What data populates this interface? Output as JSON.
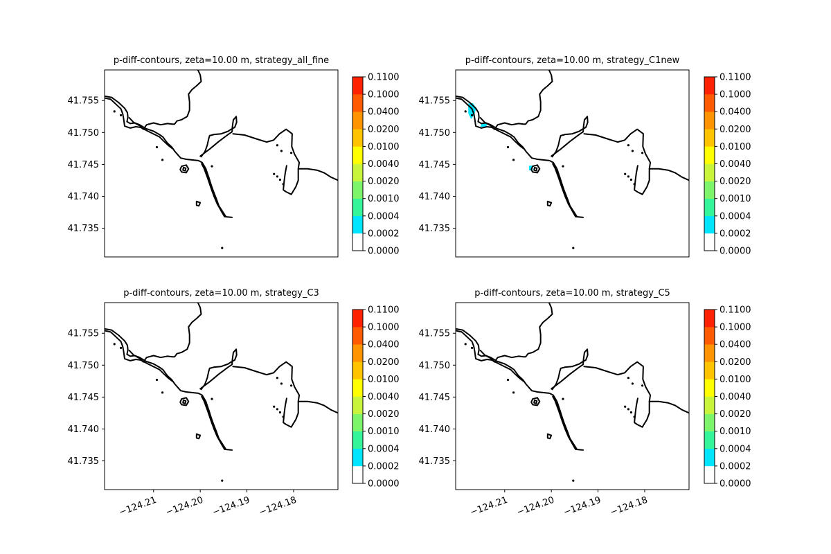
{
  "chart_data": [
    {
      "type": "contour",
      "title": "p-diff-contours, zeta=10.00 m, strategy_all_fine",
      "xlabel": "",
      "ylabel": "",
      "xlim": [
        -124.2205,
        -124.1705
      ],
      "ylim": [
        41.7305,
        41.7598
      ],
      "x_ticks": [],
      "y_ticks": [
        {
          "v": 41.755,
          "label": "41.755"
        },
        {
          "v": 41.75,
          "label": "41.750"
        },
        {
          "v": 41.745,
          "label": "41.745"
        },
        {
          "v": 41.74,
          "label": "41.740"
        },
        {
          "v": 41.735,
          "label": "41.735"
        }
      ],
      "filled_regions": []
    },
    {
      "type": "contour",
      "title": "p-diff-contours, zeta=10.00 m, strategy_C1new",
      "xlabel": "",
      "ylabel": "",
      "xlim": [
        -124.2205,
        -124.1705
      ],
      "ylim": [
        41.7305,
        41.7598
      ],
      "x_ticks": [],
      "y_ticks": [
        {
          "v": 41.755,
          "label": "41.755"
        },
        {
          "v": 41.75,
          "label": "41.750"
        },
        {
          "v": 41.745,
          "label": "41.745"
        },
        {
          "v": 41.74,
          "label": "41.740"
        },
        {
          "v": 41.735,
          "label": "41.735"
        }
      ],
      "filled_regions": [
        {
          "level": "0.0002-0.0004",
          "color": "#00e5ff",
          "points": [
            [
              -124.2178,
              41.7545
            ],
            [
              -124.2168,
              41.7546
            ],
            [
              -124.2161,
              41.7538
            ],
            [
              -124.2165,
              41.7528
            ],
            [
              -124.2172,
              41.7521
            ],
            [
              -124.2178,
              41.753
            ]
          ]
        },
        {
          "level": "0.0002-0.0004",
          "color": "#00e5ff",
          "points": [
            [
              -124.215,
              41.7513
            ],
            [
              -124.2136,
              41.7514
            ],
            [
              -124.214,
              41.7509
            ],
            [
              -124.2152,
              41.7509
            ]
          ]
        },
        {
          "level": "0.0002-0.0004",
          "color": "#00e5ff",
          "points": [
            [
              -124.2048,
              41.7448
            ],
            [
              -124.204,
              41.7448
            ],
            [
              -124.204,
              41.744
            ],
            [
              -124.2048,
              41.7441
            ]
          ]
        }
      ]
    },
    {
      "type": "contour",
      "title": "p-diff-contours, zeta=10.00 m, strategy_C3",
      "xlabel": "",
      "ylabel": "",
      "xlim": [
        -124.2205,
        -124.1705
      ],
      "ylim": [
        41.7305,
        41.7598
      ],
      "x_ticks": [
        {
          "v": -124.21,
          "label": "−124.21"
        },
        {
          "v": -124.2,
          "label": "−124.20"
        },
        {
          "v": -124.19,
          "label": "−124.19"
        },
        {
          "v": -124.18,
          "label": "−124.18"
        }
      ],
      "y_ticks": [
        {
          "v": 41.755,
          "label": "41.755"
        },
        {
          "v": 41.75,
          "label": "41.750"
        },
        {
          "v": 41.745,
          "label": "41.745"
        },
        {
          "v": 41.74,
          "label": "41.740"
        },
        {
          "v": 41.735,
          "label": "41.735"
        }
      ],
      "filled_regions": []
    },
    {
      "type": "contour",
      "title": "p-diff-contours, zeta=10.00 m, strategy_C5",
      "xlabel": "",
      "ylabel": "",
      "xlim": [
        -124.2205,
        -124.1705
      ],
      "ylim": [
        41.7305,
        41.7598
      ],
      "x_ticks": [
        {
          "v": -124.21,
          "label": "−124.21"
        },
        {
          "v": -124.2,
          "label": "−124.20"
        },
        {
          "v": -124.19,
          "label": "−124.19"
        },
        {
          "v": -124.18,
          "label": "−124.18"
        }
      ],
      "y_ticks": [
        {
          "v": 41.755,
          "label": "41.755"
        },
        {
          "v": 41.75,
          "label": "41.750"
        },
        {
          "v": 41.745,
          "label": "41.745"
        },
        {
          "v": 41.74,
          "label": "41.740"
        },
        {
          "v": 41.735,
          "label": "41.735"
        }
      ],
      "filled_regions": []
    }
  ],
  "colorbar": {
    "levels": [
      "0.0000",
      "0.0002",
      "0.0004",
      "0.0010",
      "0.0020",
      "0.0040",
      "0.0100",
      "0.0200",
      "0.0400",
      "0.1000",
      "0.1100"
    ],
    "colors": [
      "#ffffff",
      "#00e5ff",
      "#34f59a",
      "#7cf56a",
      "#c8f53c",
      "#ffff00",
      "#ffc300",
      "#ff9400",
      "#ff5a00",
      "#ff2200"
    ]
  },
  "shoreline": {
    "lines": [
      [
        [
          -124.2205,
          41.7557
        ],
        [
          -124.219,
          41.7555
        ],
        [
          -124.2175,
          41.7547
        ],
        [
          -124.2162,
          41.7538
        ],
        [
          -124.2156,
          41.7531
        ],
        [
          -124.2155,
          41.7524
        ],
        [
          -124.2157,
          41.7517
        ],
        [
          -124.215,
          41.7514
        ],
        [
          -124.214,
          41.7515
        ],
        [
          -124.213,
          41.7512
        ],
        [
          -124.2116,
          41.7506
        ],
        [
          -124.21,
          41.7502
        ],
        [
          -124.2088,
          41.7497
        ],
        [
          -124.208,
          41.7493
        ],
        [
          -124.2071,
          41.7484
        ],
        [
          -124.2061,
          41.7477
        ],
        [
          -124.2054,
          41.747
        ],
        [
          -124.2042,
          41.746
        ],
        [
          -124.203,
          41.7458
        ],
        [
          -124.2018,
          41.7457
        ],
        [
          -124.2004,
          41.7456
        ],
        [
          -124.1996,
          41.7453
        ],
        [
          -124.1988,
          41.7443
        ],
        [
          -124.1981,
          41.7428
        ],
        [
          -124.1975,
          41.7413
        ],
        [
          -124.1968,
          41.7398
        ],
        [
          -124.1962,
          41.7386
        ],
        [
          -124.1952,
          41.7373
        ],
        [
          -124.1948,
          41.7368
        ],
        [
          -124.1932,
          41.7367
        ]
      ],
      [
        [
          -124.2205,
          41.7554
        ],
        [
          -124.2192,
          41.7552
        ],
        [
          -124.218,
          41.7544
        ],
        [
          -124.217,
          41.7537
        ],
        [
          -124.2166,
          41.7529
        ],
        [
          -124.2164,
          41.7521
        ],
        [
          -124.2162,
          41.751
        ],
        [
          -124.215,
          41.7507
        ],
        [
          -124.2138,
          41.7509
        ],
        [
          -124.2128,
          41.7508
        ],
        [
          -124.2112,
          41.7502
        ],
        [
          -124.2098,
          41.7497
        ],
        [
          -124.2087,
          41.7493
        ],
        [
          -124.2079,
          41.7487
        ],
        [
          -124.2069,
          41.748
        ],
        [
          -124.206,
          41.7475
        ]
      ],
      [
        [
          -124.2,
          41.7463
        ],
        [
          -124.198,
          41.7474
        ],
        [
          -124.196,
          41.7486
        ],
        [
          -124.194,
          41.7497
        ],
        [
          -124.1932,
          41.7501
        ],
        [
          -124.1931,
          41.751
        ],
        [
          -124.1929,
          41.752
        ],
        [
          -124.1923,
          41.7525
        ],
        [
          -124.1922,
          41.7516
        ],
        [
          -124.1926,
          41.7508
        ],
        [
          -124.1934,
          41.7505
        ],
        [
          -124.194,
          41.7502
        ],
        [
          -124.1955,
          41.7498
        ],
        [
          -124.197,
          41.7497
        ],
        [
          -124.198,
          41.7495
        ],
        [
          -124.1982,
          41.749
        ],
        [
          -124.1985,
          41.748
        ],
        [
          -124.199,
          41.747
        ],
        [
          -124.1998,
          41.7462
        ]
      ],
      [
        [
          -124.1995,
          41.7449
        ],
        [
          -124.1987,
          41.7438
        ],
        [
          -124.198,
          41.7425
        ],
        [
          -124.1973,
          41.741
        ],
        [
          -124.1965,
          41.7395
        ],
        [
          -124.196,
          41.7385
        ],
        [
          -124.1945,
          41.7368
        ]
      ],
      [
        [
          -124.1997,
          41.7451
        ],
        [
          -124.1992,
          41.7444
        ],
        [
          -124.1984,
          41.7428
        ],
        [
          -124.1977,
          41.7413
        ],
        [
          -124.197,
          41.7399
        ],
        [
          -124.1963,
          41.7387
        ]
      ],
      [
        [
          -124.193,
          41.7498
        ],
        [
          -124.1905,
          41.7496
        ],
        [
          -124.188,
          41.749
        ],
        [
          -124.1858,
          41.7485
        ],
        [
          -124.1843,
          41.7488
        ],
        [
          -124.183,
          41.7498
        ],
        [
          -124.1816,
          41.7505
        ],
        [
          -124.1803,
          41.7498
        ],
        [
          -124.1804,
          41.7478
        ],
        [
          -124.1798,
          41.7466
        ],
        [
          -124.1788,
          41.7453
        ],
        [
          -124.179,
          41.7443
        ]
      ],
      [
        [
          -124.1815,
          41.7448
        ],
        [
          -124.1818,
          41.7436
        ],
        [
          -124.182,
          41.7425
        ],
        [
          -124.1822,
          41.741
        ],
        [
          -124.1816,
          41.7407
        ],
        [
          -124.1805,
          41.7403
        ],
        [
          -124.1795,
          41.7415
        ],
        [
          -124.179,
          41.7425
        ],
        [
          -124.179,
          41.7442
        ]
      ],
      [
        [
          -124.179,
          41.7443
        ],
        [
          -124.177,
          41.7443
        ],
        [
          -124.175,
          41.7441
        ],
        [
          -124.1735,
          41.7437
        ],
        [
          -124.172,
          41.743
        ],
        [
          -124.1705,
          41.7425
        ]
      ],
      [
        [
          -124.2005,
          41.7598
        ],
        [
          -124.2,
          41.759
        ],
        [
          -124.1998,
          41.758
        ],
        [
          -124.2008,
          41.7573
        ],
        [
          -124.2018,
          41.7567
        ],
        [
          -124.2025,
          41.756
        ],
        [
          -124.2023,
          41.7548
        ],
        [
          -124.2023,
          41.7535
        ],
        [
          -124.2028,
          41.7525
        ],
        [
          -124.204,
          41.752
        ],
        [
          -124.205,
          41.7518
        ],
        [
          -124.2055,
          41.7513
        ],
        [
          -124.206,
          41.7513
        ],
        [
          -124.207,
          41.7514
        ],
        [
          -124.2085,
          41.7512
        ],
        [
          -124.21,
          41.7515
        ],
        [
          -124.2115,
          41.7512
        ],
        [
          -124.2122,
          41.7505
        ],
        [
          -124.2128,
          41.751
        ],
        [
          -124.2143,
          41.7516
        ],
        [
          -124.2152,
          41.7523
        ]
      ]
    ],
    "rings": [
      [
        [
          -124.204,
          41.7447
        ],
        [
          -124.203,
          41.7449
        ],
        [
          -124.2025,
          41.7443
        ],
        [
          -124.203,
          41.7437
        ],
        [
          -124.204,
          41.7438
        ],
        [
          -124.2043,
          41.7442
        ]
      ],
      [
        [
          -124.2036,
          41.7445
        ],
        [
          -124.2031,
          41.7444
        ],
        [
          -124.2032,
          41.744
        ],
        [
          -124.2037,
          41.7441
        ]
      ],
      [
        [
          -124.2008,
          41.7392
        ],
        [
          -124.2,
          41.739
        ],
        [
          -124.2003,
          41.7385
        ],
        [
          -124.2008,
          41.7386
        ]
      ]
    ],
    "islets": [
      [
        -124.2184,
        41.7533
      ],
      [
        -124.217,
        41.7527
      ],
      [
        -124.2093,
        41.7477
      ],
      [
        -124.2081,
        41.7457
      ],
      [
        -124.1975,
        41.7447
      ],
      [
        -124.1953,
        41.7319
      ],
      [
        -124.1835,
        41.748
      ],
      [
        -124.1826,
        41.7471
      ],
      [
        -124.1805,
        41.7468
      ],
      [
        -124.1842,
        41.7435
      ],
      [
        -124.1835,
        41.7431
      ],
      [
        -124.1829,
        41.7426
      ],
      [
        -124.1822,
        41.7419
      ]
    ]
  }
}
